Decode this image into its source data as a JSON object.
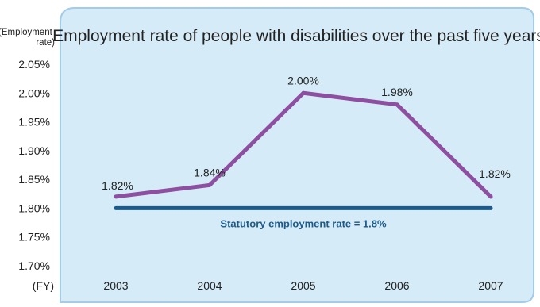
{
  "colors": {
    "panel_fill": "#d6ebf8",
    "panel_stroke": "#a3cce9",
    "series": "#8e4fa0",
    "reference": "#1d5a8a",
    "reference_label": "#1d5a8a"
  },
  "chart_data": {
    "type": "line",
    "title": "Employment rate of people with disabilities over the past five years",
    "ylabel": "(Employment rate)",
    "xlabel": "(FY)",
    "categories": [
      "2003",
      "2004",
      "2005",
      "2006",
      "2007"
    ],
    "series": [
      {
        "values": [
          1.82,
          1.84,
          2.0,
          1.98,
          1.82
        ]
      }
    ],
    "data_labels": [
      "1.82%",
      "1.84%",
      "2.00%",
      "1.98%",
      "1.82%"
    ],
    "yticks": [
      2.05,
      2.0,
      1.95,
      1.9,
      1.85,
      1.8,
      1.75,
      1.7
    ],
    "ytick_labels": [
      "2.05%",
      "2.00%",
      "1.95%",
      "1.90%",
      "1.85%",
      "1.80%",
      "1.75%",
      "1.70%"
    ],
    "ylim": [
      1.7,
      2.05
    ],
    "reference_line": {
      "value": 1.8,
      "label": "Statutory employment rate = 1.8%"
    },
    "grid": false,
    "legend": "none"
  }
}
